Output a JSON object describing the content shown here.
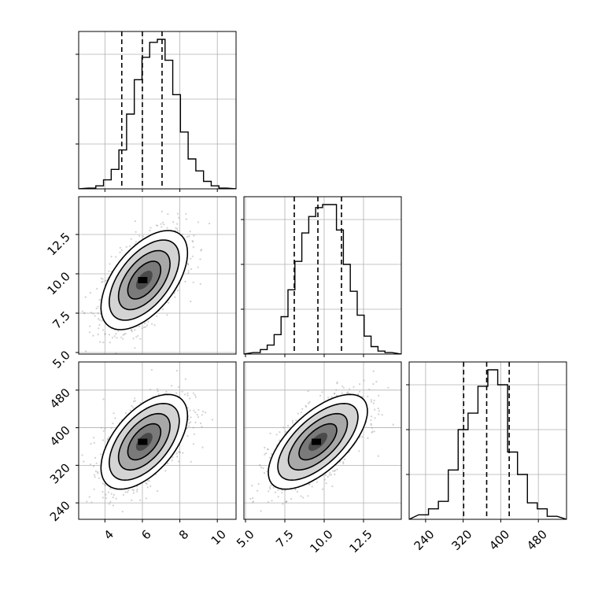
{
  "chart_data": {
    "type": "corner",
    "parameters": [
      {
        "ticks": [
          "4",
          "6",
          "8",
          "10"
        ],
        "tick_values": [
          4,
          6,
          8,
          10
        ],
        "range": [
          2.6,
          11.0
        ],
        "quantiles": [
          4.9,
          6.0,
          7.05
        ],
        "histogram": [
          0.005,
          0.02,
          0.06,
          0.13,
          0.26,
          0.5,
          0.73,
          0.88,
          0.98,
          1.0,
          0.86,
          0.63,
          0.38,
          0.2,
          0.12,
          0.05,
          0.02,
          0.005
        ]
      },
      {
        "ticks": [
          "5.0",
          "7.5",
          "10.0",
          "12.5"
        ],
        "tick_values": [
          5.0,
          7.5,
          10.0,
          12.5
        ],
        "range": [
          4.9,
          14.9
        ],
        "quantiles": [
          8.1,
          9.6,
          11.1
        ],
        "histogram": [
          0.01,
          0.03,
          0.06,
          0.13,
          0.25,
          0.43,
          0.62,
          0.81,
          0.92,
          0.98,
          1.0,
          1.0,
          0.83,
          0.6,
          0.42,
          0.26,
          0.12,
          0.05,
          0.02,
          0.01
        ]
      },
      {
        "ticks": [
          "240",
          "320",
          "400",
          "480"
        ],
        "tick_values": [
          240,
          320,
          400,
          480
        ],
        "range": [
          205,
          540
        ],
        "quantiles": [
          321,
          370,
          418
        ],
        "histogram": [
          0.03,
          0.07,
          0.12,
          0.33,
          0.6,
          0.71,
          0.89,
          1.0,
          0.9,
          0.45,
          0.3,
          0.11,
          0.07,
          0.02
        ]
      }
    ],
    "correlations": [
      {
        "x": 0,
        "y": 1,
        "mean": [
          6.1,
          9.6
        ],
        "sd": [
          1.1,
          1.5
        ],
        "rho": 0.55
      },
      {
        "x": 0,
        "y": 2,
        "mean": [
          6.1,
          370
        ],
        "sd": [
          1.1,
          48
        ],
        "rho": 0.55
      },
      {
        "x": 1,
        "y": 2,
        "mean": [
          9.6,
          370
        ],
        "sd": [
          1.5,
          48
        ],
        "rho": 0.65
      }
    ]
  }
}
